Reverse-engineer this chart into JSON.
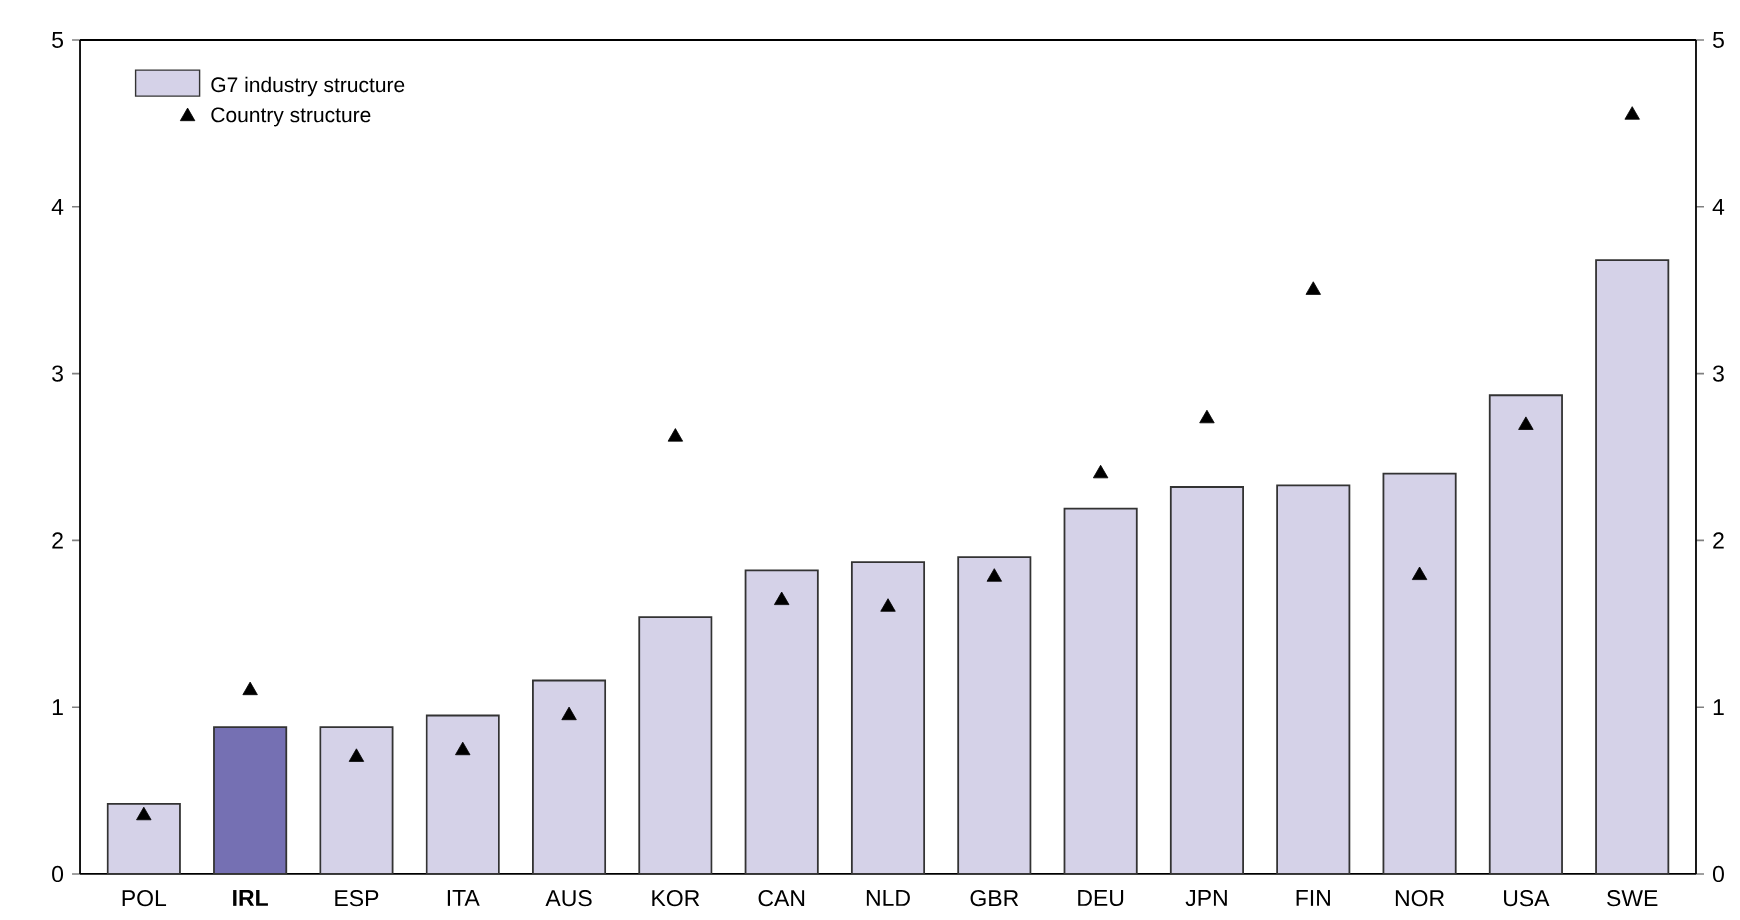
{
  "chart_data": {
    "type": "bar",
    "categories": [
      "POL",
      "**IRL**",
      "ESP",
      "ITA",
      "AUS",
      "KOR",
      "CAN",
      "NLD",
      "GBR",
      "DEU",
      "JPN",
      "FIN",
      "NOR",
      "USA",
      "SWE"
    ],
    "series": [
      {
        "name": "G7 industry structure",
        "colors": [
          "#d5d2e8",
          "#7570b3",
          "#d5d2e8",
          "#d5d2e8",
          "#d5d2e8",
          "#d5d2e8",
          "#d5d2e8",
          "#d5d2e8",
          "#d5d2e8",
          "#d5d2e8",
          "#d5d2e8",
          "#d5d2e8",
          "#d5d2e8",
          "#d5d2e8",
          "#d5d2e8"
        ],
        "values": [
          0.42,
          0.88,
          0.88,
          0.95,
          1.16,
          1.54,
          1.82,
          1.87,
          1.9,
          2.19,
          2.32,
          2.33,
          2.4,
          2.87,
          3.68
        ]
      },
      {
        "name": "Country structure",
        "type": "scatter",
        "color": "#000000",
        "values": [
          0.35,
          1.1,
          0.7,
          0.74,
          0.95,
          2.62,
          1.64,
          1.6,
          1.78,
          2.4,
          2.73,
          3.5,
          1.79,
          2.69,
          4.55
        ]
      }
    ],
    "marker": "triangle",
    "legend": "top left",
    "ylim": [
      0,
      5
    ],
    "yticks": [
      0,
      1,
      2,
      3,
      4,
      5
    ],
    "y2lim": [
      0,
      5
    ],
    "y2ticks": [
      0,
      1,
      2,
      3,
      4,
      5
    ]
  }
}
